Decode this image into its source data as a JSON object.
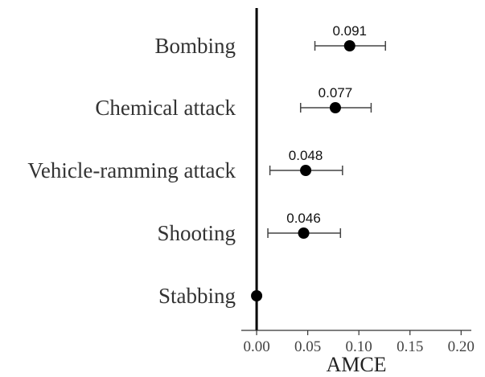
{
  "chart_data": {
    "type": "scatter",
    "subtype": "coefficient-plot",
    "categories": [
      "Bombing",
      "Chemical attack",
      "Vehicle-ramming attack",
      "Shooting",
      "Stabbing"
    ],
    "estimates": [
      0.091,
      0.077,
      0.048,
      0.046,
      0.0
    ],
    "ci_low": [
      0.057,
      0.043,
      0.013,
      0.011,
      0.0
    ],
    "ci_high": [
      0.126,
      0.112,
      0.084,
      0.082,
      0.0
    ],
    "data_labels": [
      "0.091",
      "0.077",
      "0.048",
      "0.046",
      ""
    ],
    "xlabel": "AMCE",
    "xlim": [
      -0.015,
      0.21
    ],
    "xticks": [
      0.0,
      0.05,
      0.1,
      0.15,
      0.2
    ],
    "xtick_labels": [
      "0.00",
      "0.05",
      "0.10",
      "0.15",
      "0.20"
    ],
    "reference_line": 0,
    "grid": false,
    "colors": {
      "point": "#000000",
      "errorbar": "#444444",
      "reference_line": "#000000",
      "axis": "#333333"
    }
  }
}
